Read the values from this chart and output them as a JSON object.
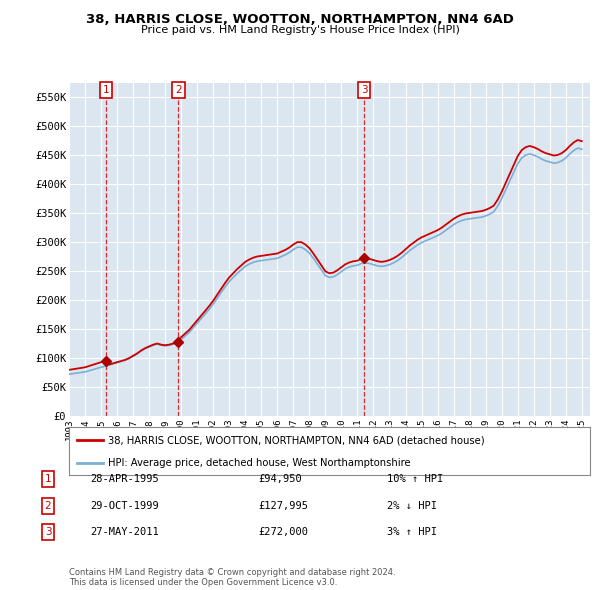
{
  "title_line1": "38, HARRIS CLOSE, WOOTTON, NORTHAMPTON, NN4 6AD",
  "title_line2": "Price paid vs. HM Land Registry's House Price Index (HPI)",
  "ylim": [
    0,
    575000
  ],
  "yticks": [
    0,
    50000,
    100000,
    150000,
    200000,
    250000,
    300000,
    350000,
    400000,
    450000,
    500000,
    550000
  ],
  "ytick_labels": [
    "£0",
    "£50K",
    "£100K",
    "£150K",
    "£200K",
    "£250K",
    "£300K",
    "£350K",
    "£400K",
    "£450K",
    "£500K",
    "£550K"
  ],
  "background_color": "#dce6f1",
  "grid_color": "#ffffff",
  "hpi_line_color": "#7bafd4",
  "price_line_color": "#cc0000",
  "dot_color": "#aa0000",
  "sales": [
    {
      "label": "1",
      "date_str": "28-APR-1995",
      "idx": 4,
      "price": 94950,
      "pct": "10%",
      "direction": "↑"
    },
    {
      "label": "2",
      "date_str": "29-OCT-1999",
      "idx": 13,
      "price": 127995,
      "pct": "2%",
      "direction": "↓"
    },
    {
      "label": "3",
      "date_str": "27-MAY-2011",
      "idx": 36,
      "price": 272000,
      "pct": "3%",
      "direction": "↑"
    }
  ],
  "legend_line1": "38, HARRIS CLOSE, WOOTTON, NORTHAMPTON, NN4 6AD (detached house)",
  "legend_line2": "HPI: Average price, detached house, West Northamptonshire",
  "footnote": "Contains HM Land Registry data © Crown copyright and database right 2024.\nThis data is licensed under the Open Government Licence v3.0.",
  "hpi_data_x": [
    1993.0,
    1993.25,
    1993.5,
    1993.75,
    1994.0,
    1994.25,
    1994.5,
    1994.75,
    1995.0,
    1995.25,
    1995.5,
    1995.75,
    1996.0,
    1996.25,
    1996.5,
    1996.75,
    1997.0,
    1997.25,
    1997.5,
    1997.75,
    1998.0,
    1998.25,
    1998.5,
    1998.75,
    1999.0,
    1999.25,
    1999.5,
    1999.75,
    2000.0,
    2000.25,
    2000.5,
    2000.75,
    2001.0,
    2001.25,
    2001.5,
    2001.75,
    2002.0,
    2002.25,
    2002.5,
    2002.75,
    2003.0,
    2003.25,
    2003.5,
    2003.75,
    2004.0,
    2004.25,
    2004.5,
    2004.75,
    2005.0,
    2005.25,
    2005.5,
    2005.75,
    2006.0,
    2006.25,
    2006.5,
    2006.75,
    2007.0,
    2007.25,
    2007.5,
    2007.75,
    2008.0,
    2008.25,
    2008.5,
    2008.75,
    2009.0,
    2009.25,
    2009.5,
    2009.75,
    2010.0,
    2010.25,
    2010.5,
    2010.75,
    2011.0,
    2011.25,
    2011.5,
    2011.75,
    2012.0,
    2012.25,
    2012.5,
    2012.75,
    2013.0,
    2013.25,
    2013.5,
    2013.75,
    2014.0,
    2014.25,
    2014.5,
    2014.75,
    2015.0,
    2015.25,
    2015.5,
    2015.75,
    2016.0,
    2016.25,
    2016.5,
    2016.75,
    2017.0,
    2017.25,
    2017.5,
    2017.75,
    2018.0,
    2018.25,
    2018.5,
    2018.75,
    2019.0,
    2019.25,
    2019.5,
    2019.75,
    2020.0,
    2020.25,
    2020.5,
    2020.75,
    2021.0,
    2021.25,
    2021.5,
    2021.75,
    2022.0,
    2022.25,
    2022.5,
    2022.75,
    2023.0,
    2023.25,
    2023.5,
    2023.75,
    2024.0,
    2024.25,
    2024.5,
    2024.75,
    2025.0
  ],
  "hpi_data_y": [
    72000,
    73000,
    74000,
    75000,
    76000,
    78000,
    80000,
    82000,
    84000,
    86000,
    88000,
    90000,
    92000,
    94000,
    96000,
    99000,
    103000,
    107000,
    112000,
    116000,
    119000,
    122000,
    124000,
    122000,
    121000,
    122000,
    124000,
    127000,
    132000,
    138000,
    144000,
    152000,
    160000,
    168000,
    176000,
    184000,
    193000,
    203000,
    213000,
    223000,
    232000,
    239000,
    246000,
    252000,
    258000,
    262000,
    265000,
    267000,
    268000,
    269000,
    270000,
    271000,
    272000,
    275000,
    278000,
    282000,
    287000,
    291000,
    291000,
    287000,
    281000,
    272000,
    262000,
    252000,
    242000,
    239000,
    240000,
    244000,
    249000,
    254000,
    257000,
    259000,
    260000,
    263000,
    264000,
    263000,
    261000,
    259000,
    258000,
    259000,
    261000,
    264000,
    268000,
    273000,
    279000,
    285000,
    290000,
    295000,
    299000,
    302000,
    305000,
    308000,
    311000,
    315000,
    320000,
    325000,
    330000,
    334000,
    337000,
    339000,
    340000,
    341000,
    342000,
    343000,
    345000,
    348000,
    352000,
    362000,
    375000,
    390000,
    405000,
    420000,
    435000,
    445000,
    450000,
    452000,
    450000,
    447000,
    443000,
    440000,
    438000,
    436000,
    437000,
    440000,
    445000,
    452000,
    458000,
    462000,
    460000
  ],
  "xtick_years": [
    1993,
    1994,
    1995,
    1996,
    1997,
    1998,
    1999,
    2000,
    2001,
    2002,
    2003,
    2004,
    2005,
    2006,
    2007,
    2008,
    2009,
    2010,
    2011,
    2012,
    2013,
    2014,
    2015,
    2016,
    2017,
    2018,
    2019,
    2020,
    2021,
    2022,
    2023,
    2024,
    2025
  ]
}
